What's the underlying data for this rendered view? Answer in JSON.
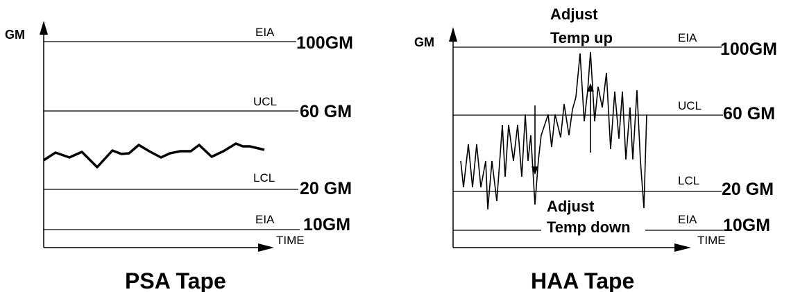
{
  "left_panel": {
    "y_axis_label": "GM",
    "x_axis_label": "TIME",
    "title": "PSA Tape",
    "lines": [
      {
        "tag": "EIA",
        "value": "100GM"
      },
      {
        "tag": "UCL",
        "value": "60 GM"
      },
      {
        "tag": "LCL",
        "value": "20 GM"
      },
      {
        "tag": "EIA",
        "value": "10GM"
      }
    ]
  },
  "right_panel": {
    "y_axis_label": "GM",
    "x_axis_label": "TIME",
    "title": "HAA Tape",
    "lines": [
      {
        "tag": "EIA",
        "value": "100GM"
      },
      {
        "tag": "UCL",
        "value": "60 GM"
      },
      {
        "tag": "LCL",
        "value": "20 GM"
      },
      {
        "tag": "EIA",
        "value": "10GM"
      }
    ],
    "annotation_up": [
      "Adjust",
      "Temp up"
    ],
    "annotation_down": [
      "Adjust",
      "Temp down"
    ]
  },
  "colors": {
    "ink": "#000000",
    "background": "#ffffff"
  }
}
